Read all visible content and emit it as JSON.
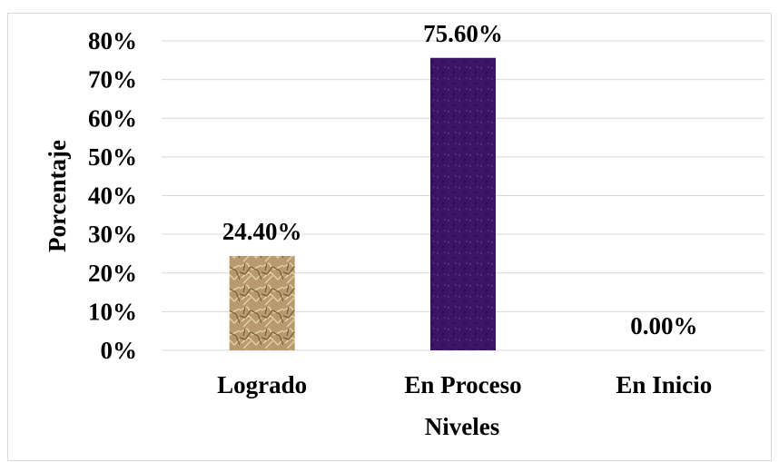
{
  "chart_data": {
    "type": "bar",
    "categories": [
      "Logrado",
      "En Proceso",
      "En Inicio"
    ],
    "values": [
      24.4,
      75.6,
      0.0
    ],
    "data_labels": [
      "24.40%",
      "75.60%",
      "0.00%"
    ],
    "xlabel": "Niveles",
    "ylabel": "Porcentaje",
    "ylim": [
      0,
      80
    ],
    "yticks": [
      0,
      10,
      20,
      30,
      40,
      50,
      60,
      70,
      80
    ],
    "ytick_labels": [
      "0%",
      "10%",
      "20%",
      "30%",
      "40%",
      "50%",
      "60%",
      "70%",
      "80%"
    ],
    "grid": true,
    "legend": "none",
    "bar_colors": [
      "#b89a6e",
      "#3c1466",
      "#b89a6e"
    ],
    "gridline_color": "#d9d9d9"
  }
}
